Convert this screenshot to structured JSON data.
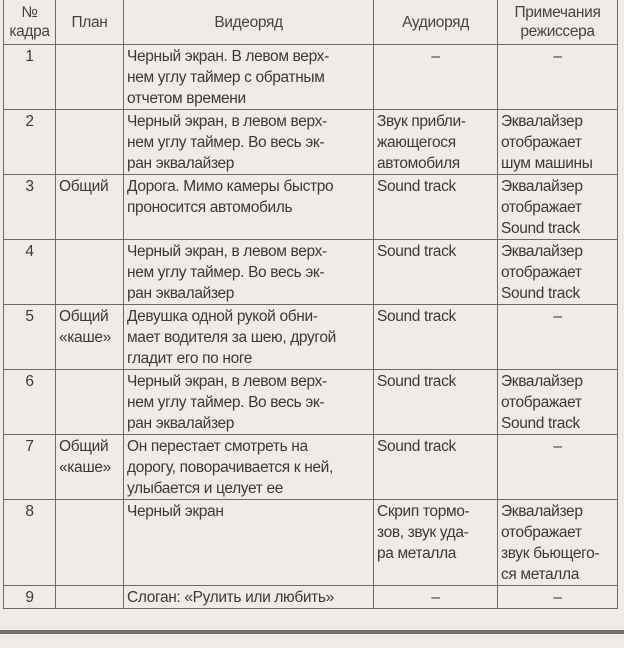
{
  "table": {
    "headers": [
      "№\nкадра",
      "План",
      "Видеоряд",
      "Аудиоряд",
      "Примечания\nрежиссера"
    ],
    "rows": [
      {
        "num": "1",
        "plan": "",
        "video": "Черный экран. В левом верх-\nнем углу таймер с обратным\nотчетом времени",
        "audio": "–",
        "notes": "–"
      },
      {
        "num": "2",
        "plan": "",
        "video": "Черный экран, в левом верх-\nнем углу таймер. Во весь эк-\nран эквалайзер",
        "audio": "Звук прибли-\nжающегося\nавтомобиля",
        "notes": "Эквалайзер\nотображает\nшум машины"
      },
      {
        "num": "3",
        "plan": "Общий",
        "video": "Дорога. Мимо камеры быстро\nпроносится автомобиль",
        "audio": "Sound track",
        "notes": "Эквалайзер\nотображает\nSound track"
      },
      {
        "num": "4",
        "plan": "",
        "video": "Черный экран, в левом верх-\nнем углу таймер. Во весь эк-\nран эквалайзер",
        "audio": "Sound track",
        "notes": "Эквалайзер\nотображает\nSound track"
      },
      {
        "num": "5",
        "plan": "Общий\n«каше»",
        "video": "Девушка одной рукой обни-\nмает водителя за шею, другой\nгладит его по ноге",
        "audio": "Sound track",
        "notes": "–"
      },
      {
        "num": "6",
        "plan": "",
        "video": "Черный экран, в левом верх-\nнем углу таймер. Во весь эк-\nран эквалайзер",
        "audio": "Sound track",
        "notes": "Эквалайзер\nотображает\nSound track"
      },
      {
        "num": "7",
        "plan": "Общий\n«каше»",
        "video": "Он перестает смотреть на\nдорогу, поворачивается к ней,\nулыбается и целует ее",
        "audio": "Sound track",
        "notes": "–"
      },
      {
        "num": "8",
        "plan": "",
        "video": "Черный экран",
        "audio": "Скрип тормо-\nзов, звук уда-\nра металла",
        "notes": "Эквалайзер\nотображает\nзвук бьющего-\nся металла"
      },
      {
        "num": "9",
        "plan": "",
        "video": "Слоган: «Рулить или любить»",
        "audio": "–",
        "notes": "–"
      }
    ]
  }
}
